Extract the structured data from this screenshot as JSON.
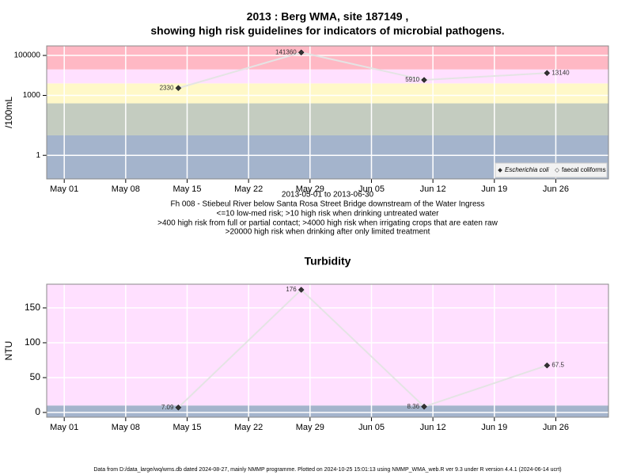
{
  "chart_data": [
    {
      "type": "line",
      "title": "2013 : Berg WMA, site 187149 ,",
      "subtitle": "showing high risk guidelines for indicators of microbial pathogens.",
      "ylabel": "/100mL",
      "xlabel": "2013-05-01 to 2013-06-30",
      "notes": [
        "Fh 008 - Stiebeul River below Santa Rosa Street Bridge downstream of the Water Ingress",
        "<=10 low-med risk; >10 high risk when drinking untreated water",
        ">400 high risk from full or partial contact; >4000 high risk when irrigating crops that are eaten raw",
        ">20000 high risk when drinking after only limited treatment"
      ],
      "log_y": true,
      "x": [
        "2013-05-14",
        "2013-05-28",
        "2013-06-11",
        "2013-06-25"
      ],
      "series": [
        {
          "name": "Escherichia coli",
          "color": "#333333",
          "values": [
            2330,
            141360,
            5910,
            13140
          ]
        },
        {
          "name": "faecal coliforms",
          "color": "#ffffff",
          "values": [
            null,
            null,
            null,
            null
          ]
        }
      ],
      "xlim": [
        "2013-04-29",
        "2013-07-02"
      ],
      "xticks": [
        {
          "value": "2013-05-01",
          "label": "May 01"
        },
        {
          "value": "2013-05-08",
          "label": "May 08"
        },
        {
          "value": "2013-05-15",
          "label": "May 15"
        },
        {
          "value": "2013-05-22",
          "label": "May 22"
        },
        {
          "value": "2013-05-29",
          "label": "May 29"
        },
        {
          "value": "2013-06-05",
          "label": "Jun 05"
        },
        {
          "value": "2013-06-12",
          "label": "Jun 12"
        },
        {
          "value": "2013-06-19",
          "label": "Jun 19"
        },
        {
          "value": "2013-06-26",
          "label": "Jun 26"
        }
      ],
      "ylim": [
        0.066,
        300000
      ],
      "yticks": [
        1,
        1000,
        100000
      ],
      "band_breaks": [
        10,
        400,
        4000,
        20000
      ],
      "band_colors": [
        "#a4b4cc",
        "#c4ccc0",
        "#fff8c8",
        "#ffe0ff",
        "#ffb8c4"
      ],
      "grid": true,
      "legend": "lower right"
    },
    {
      "type": "line",
      "title": "Turbidity",
      "ylabel": "NTU",
      "log_y": false,
      "x": [
        "2013-05-14",
        "2013-05-28",
        "2013-06-11",
        "2013-06-25"
      ],
      "series": [
        {
          "name": "Turbidity",
          "color": "#333333",
          "values": [
            7.09,
            176,
            8.36,
            67.5
          ]
        }
      ],
      "xlim": [
        "2013-04-29",
        "2013-07-02"
      ],
      "xticks": [
        {
          "value": "2013-05-01",
          "label": "May 01"
        },
        {
          "value": "2013-05-08",
          "label": "May 08"
        },
        {
          "value": "2013-05-15",
          "label": "May 15"
        },
        {
          "value": "2013-05-22",
          "label": "May 22"
        },
        {
          "value": "2013-05-29",
          "label": "May 29"
        },
        {
          "value": "2013-06-05",
          "label": "Jun 05"
        },
        {
          "value": "2013-06-12",
          "label": "Jun 12"
        },
        {
          "value": "2013-06-19",
          "label": "Jun 19"
        },
        {
          "value": "2013-06-26",
          "label": "Jun 26"
        }
      ],
      "ylim": [
        -6.8,
        184
      ],
      "yticks": [
        0,
        50,
        100,
        150
      ],
      "band_breaks": [
        10
      ],
      "band_colors": [
        "#a4b4cc",
        "#ffe0ff"
      ],
      "grid": true
    }
  ],
  "footer": "Data from D:/data_large/wq/wms.db dated 2024-08-27, mainly NMMP programme. Plotted on 2024-10-25 15:01:13 using NMMP_WMA_web.R ver 9.3 under R version 4.4.1 (2024-06-14 ucrt)"
}
